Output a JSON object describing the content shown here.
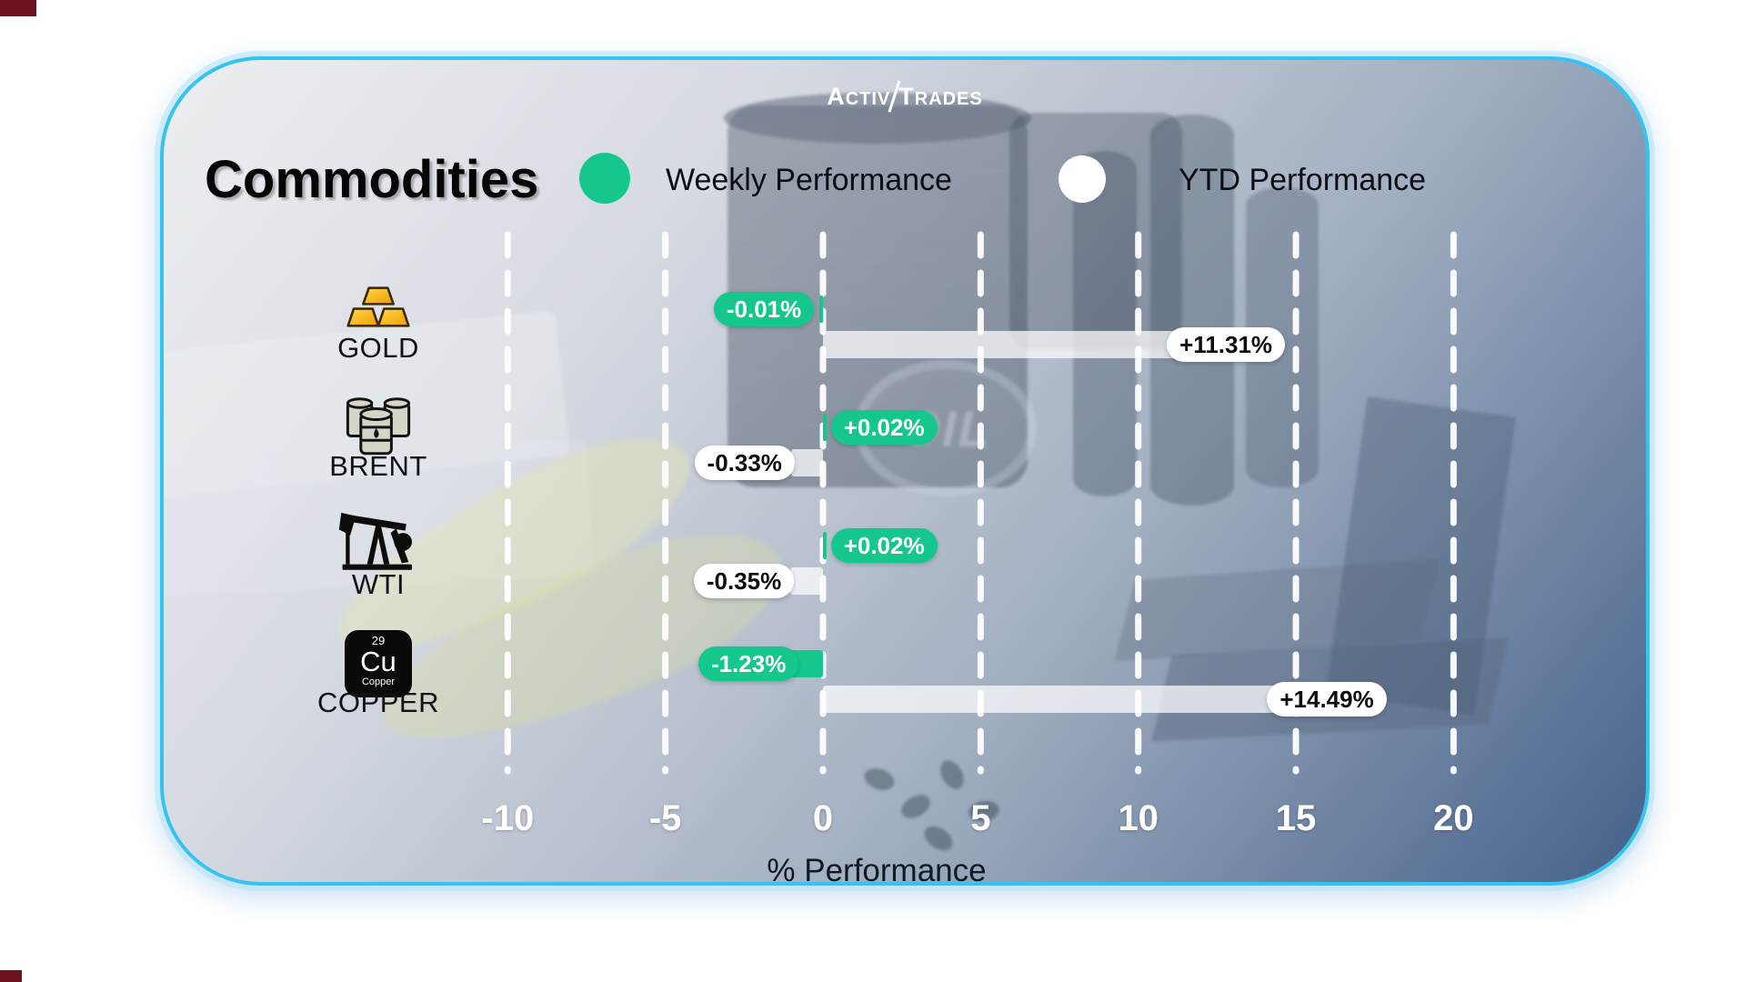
{
  "brand": {
    "name_left": "Activ",
    "name_right": "Trades"
  },
  "header": {
    "title": "Commodities",
    "legend": [
      {
        "label": "Weekly Performance",
        "color": "#15c78c"
      },
      {
        "label": "YTD Performance",
        "color": "#ffffff"
      }
    ]
  },
  "chart_data": {
    "type": "bar",
    "orientation": "horizontal",
    "title": "Commodities",
    "categories": [
      "GOLD",
      "BRENT",
      "WTI",
      "COPPER"
    ],
    "series": [
      {
        "name": "Weekly Performance",
        "color": "#15c78c",
        "values": [
          -0.01,
          0.02,
          0.02,
          -1.23
        ],
        "labels": [
          "-0.01%",
          "+0.02%",
          "+0.02%",
          "-1.23%"
        ]
      },
      {
        "name": "YTD Performance",
        "color": "#ffffff",
        "values": [
          11.31,
          -0.33,
          -0.35,
          14.49
        ],
        "labels": [
          "+11.31%",
          "-0.33%",
          "-0.35%",
          "+14.49%"
        ]
      }
    ],
    "xlabel": "% Performance",
    "xlim": [
      -12.9,
      22.1
    ],
    "xticks": [
      -10,
      -5,
      0,
      5,
      10,
      15,
      20
    ],
    "grid": "dashed-vertical-white",
    "legend_position": "top"
  },
  "copper_tile": {
    "number": "29",
    "symbol": "Cu",
    "name": "Copper"
  },
  "decor": {
    "oil_text": "OIL"
  },
  "colors": {
    "card_border": "#35c3f2",
    "positive_badge": "#15c78c",
    "ytd_bar": "rgba(255,255,255,0.72)",
    "background_top": "#edeff2",
    "background_bottom": "#45618a"
  }
}
